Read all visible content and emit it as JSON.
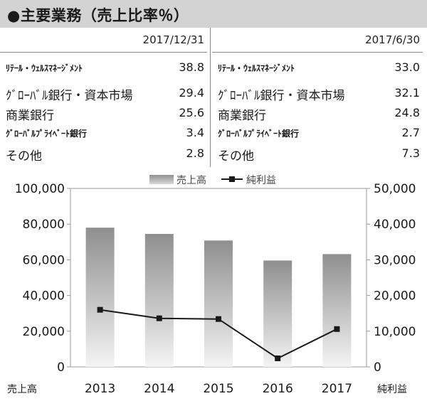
{
  "header": {
    "title": "●主要業務（売上比率％）"
  },
  "breakdown": {
    "left": {
      "date": "2017/12/31",
      "rows": [
        {
          "label": "ﾘﾃｰﾙ・ｳｪﾙｽﾏﾈｰｼﾞﾒﾝﾄ",
          "value": "38.8",
          "size": "small"
        },
        {
          "label": "ｸﾞﾛｰﾊﾞﾙ銀行・資本市場",
          "value": "29.4",
          "size": "big"
        },
        {
          "label": "商業銀行",
          "value": "25.6",
          "size": "big"
        },
        {
          "label": "ｸﾞﾛｰﾊﾞﾙﾌﾟﾗｲﾍﾞｰﾄ銀行",
          "value": "3.4",
          "size": "small"
        },
        {
          "label": "その他",
          "value": "2.8",
          "size": "big"
        }
      ]
    },
    "right": {
      "date": "2017/6/30",
      "rows": [
        {
          "label": "ﾘﾃｰﾙ・ｳｪﾙｽﾏﾈｰｼﾞﾒﾝﾄ",
          "value": "33.0",
          "size": "small"
        },
        {
          "label": "ｸﾞﾛｰﾊﾞﾙ銀行・資本市場",
          "value": "32.1",
          "size": "big"
        },
        {
          "label": "商業銀行",
          "value": "24.8",
          "size": "big"
        },
        {
          "label": "ｸﾞﾛｰﾊﾞﾙﾌﾟﾗｲﾍﾞｰﾄ銀行",
          "value": "2.7",
          "size": "small"
        },
        {
          "label": "その他",
          "value": "7.3",
          "size": "big"
        }
      ]
    }
  },
  "chart_data": {
    "type": "bar",
    "categories": [
      "2013",
      "2014",
      "2015",
      "2016",
      "2017"
    ],
    "series": [
      {
        "name": "売上高",
        "type": "bar",
        "axis": "left",
        "values": [
          78000,
          74500,
          70800,
          59600,
          63200
        ],
        "color": "#9a9a9a"
      },
      {
        "name": "純利益",
        "type": "line",
        "axis": "right",
        "values": [
          16000,
          13600,
          13400,
          2400,
          10600
        ],
        "color": "#1a1a1a"
      }
    ],
    "y_left": {
      "label": "売上高",
      "range": [
        0,
        100000
      ],
      "ticks": [
        "0",
        "20,000",
        "40,000",
        "60,000",
        "80,000",
        "100,000"
      ]
    },
    "y_right": {
      "label": "純利益",
      "range": [
        0,
        50000
      ],
      "ticks": [
        "0",
        "10,000",
        "20,000",
        "30,000",
        "40,000",
        "50,000"
      ]
    },
    "legend_position": "top-center",
    "grid": false
  }
}
